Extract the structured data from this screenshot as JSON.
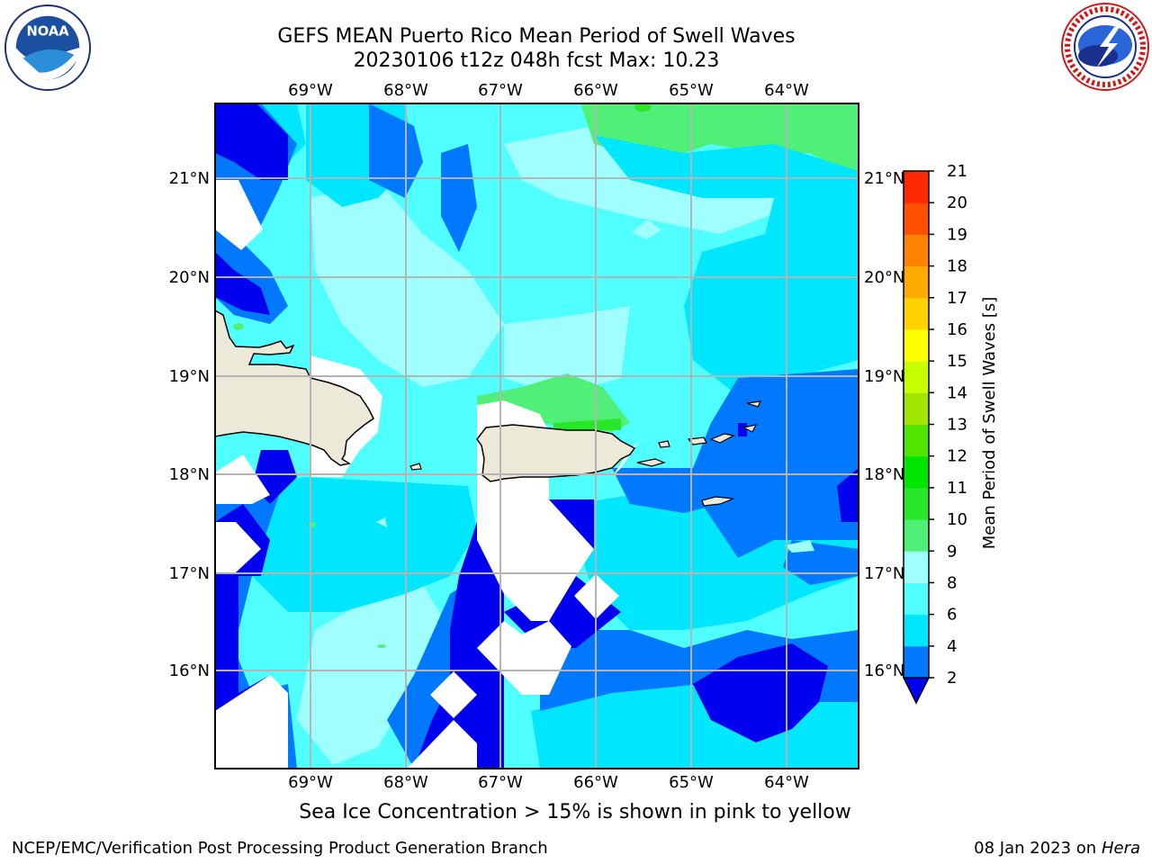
{
  "title_line1": "GEFS MEAN Puerto Rico Mean Period of Swell Waves",
  "title_line2": "20230106 t12z 048h fcst   Max: 10.23",
  "caption": "Sea Ice Concentration > 15% is shown in pink to yellow",
  "footer_left": "NCEP/EMC/Verification Post Processing Product Generation Branch",
  "footer_right_date": "08 Jan 2023 on ",
  "footer_right_machine": "Hera",
  "logos": {
    "left": "noaa-logo",
    "right": "national-weather-service-logo"
  },
  "map": {
    "lon_labels": [
      "69°W",
      "68°W",
      "67°W",
      "66°W",
      "65°W",
      "64°W"
    ],
    "lat_labels": [
      "21°N",
      "20°N",
      "19°N",
      "18°N",
      "17°N",
      "16°N"
    ],
    "land_color": "#ede9d8"
  },
  "colorbar": {
    "label": "Mean Period of Swell Waves [s]",
    "tick_labels": [
      "2",
      "4",
      "6",
      "8",
      "9",
      "10",
      "11",
      "12",
      "13",
      "14",
      "15",
      "16",
      "17",
      "18",
      "19",
      "20",
      "21"
    ],
    "colors": [
      "#0000ee",
      "#0078ff",
      "#00e6ff",
      "#50ffff",
      "#a0ffff",
      "#50f078",
      "#28e628",
      "#00e600",
      "#50e600",
      "#a0e600",
      "#c8ff00",
      "#ffff00",
      "#ffd200",
      "#ffaa00",
      "#ff8200",
      "#ff5000",
      "#ff2800",
      "#ff0000"
    ]
  }
}
